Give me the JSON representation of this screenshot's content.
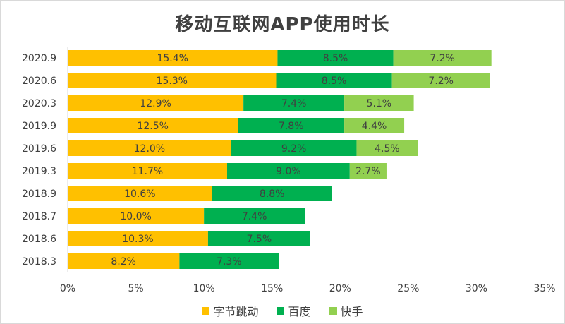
{
  "chart_data": {
    "type": "bar",
    "orientation": "horizontal",
    "stacked": true,
    "title": "移动互联网APP使用时长",
    "categories": [
      "2020.9",
      "2020.6",
      "2020.3",
      "2019.9",
      "2019.6",
      "2019.3",
      "2018.9",
      "2018.7",
      "2018.6",
      "2018.3"
    ],
    "series": [
      {
        "name": "字节跳动",
        "color": "#FFC000",
        "values": [
          15.4,
          15.3,
          12.9,
          12.5,
          12.0,
          11.7,
          10.6,
          10.0,
          10.3,
          8.2
        ],
        "labels": [
          "15.4%",
          "15.3%",
          "12.9%",
          "12.5%",
          "12.0%",
          "11.7%",
          "10.6%",
          "10.0%",
          "10.3%",
          "8.2%"
        ]
      },
      {
        "name": "百度",
        "color": "#00B050",
        "values": [
          8.5,
          8.5,
          7.4,
          7.8,
          9.2,
          9.0,
          8.8,
          7.4,
          7.5,
          7.3
        ],
        "labels": [
          "8.5%",
          "8.5%",
          "7.4%",
          "7.8%",
          "9.2%",
          "9.0%",
          "8.8%",
          "7.4%",
          "7.5%",
          "7.3%"
        ]
      },
      {
        "name": "快手",
        "color": "#92D050",
        "values": [
          7.2,
          7.2,
          5.1,
          4.4,
          4.5,
          2.7,
          null,
          null,
          null,
          null
        ],
        "labels": [
          "7.2%",
          "7.2%",
          "5.1%",
          "4.4%",
          "4.5%",
          "2.7%",
          "",
          "",
          "",
          ""
        ]
      }
    ],
    "xlim": [
      0,
      35
    ],
    "xticks": [
      0,
      5,
      10,
      15,
      20,
      25,
      30,
      35
    ],
    "xtick_labels": [
      "0%",
      "5%",
      "10%",
      "15%",
      "20%",
      "25%",
      "30%",
      "35%"
    ],
    "grid": false,
    "legend_position": "bottom"
  }
}
